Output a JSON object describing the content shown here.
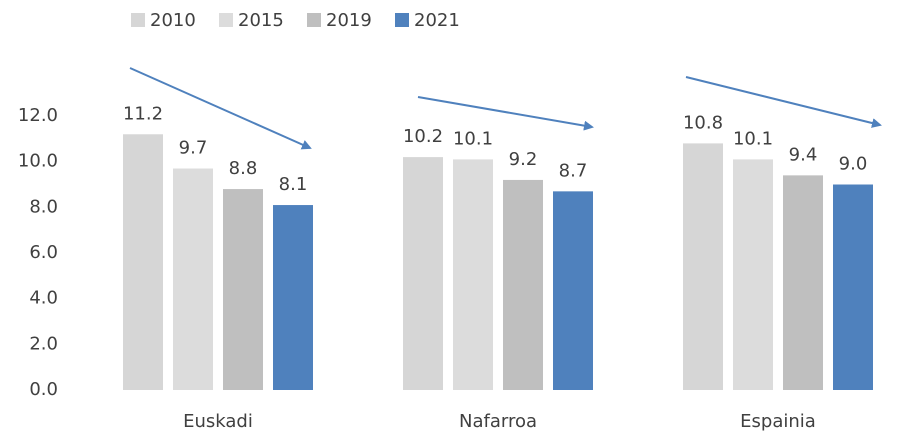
{
  "chart_data": {
    "type": "bar",
    "categories": [
      "Euskadi",
      "Nafarroa",
      "Espainia"
    ],
    "series": [
      {
        "name": "2010",
        "color": "#d6d6d6",
        "values": [
          11.2,
          10.2,
          10.8
        ],
        "value_labels": [
          "11.2",
          "10.2",
          "10.8"
        ]
      },
      {
        "name": "2015",
        "color": "#dcdcdc",
        "values": [
          9.7,
          10.1,
          10.1
        ],
        "value_labels": [
          "9.7",
          "10.1",
          "10.1"
        ]
      },
      {
        "name": "2019",
        "color": "#bfbfbf",
        "values": [
          8.8,
          9.2,
          9.4
        ],
        "value_labels": [
          "8.8",
          "9.2",
          "9.4"
        ]
      },
      {
        "name": "2021",
        "color": "#4f81bd",
        "values": [
          8.1,
          8.7,
          9.0
        ],
        "value_labels": [
          "8.1",
          "8.7",
          "9.0"
        ]
      }
    ],
    "ylim": [
      0,
      12
    ],
    "yticks": [
      {
        "value": 0,
        "label": "0.0"
      },
      {
        "value": 2,
        "label": "2.0"
      },
      {
        "value": 4,
        "label": "4.0"
      },
      {
        "value": 6,
        "label": "6.0"
      },
      {
        "value": 8,
        "label": "8.0"
      },
      {
        "value": 10,
        "label": "10.0"
      },
      {
        "value": 12,
        "label": "12.0"
      }
    ],
    "grid": false,
    "legend": "top"
  }
}
